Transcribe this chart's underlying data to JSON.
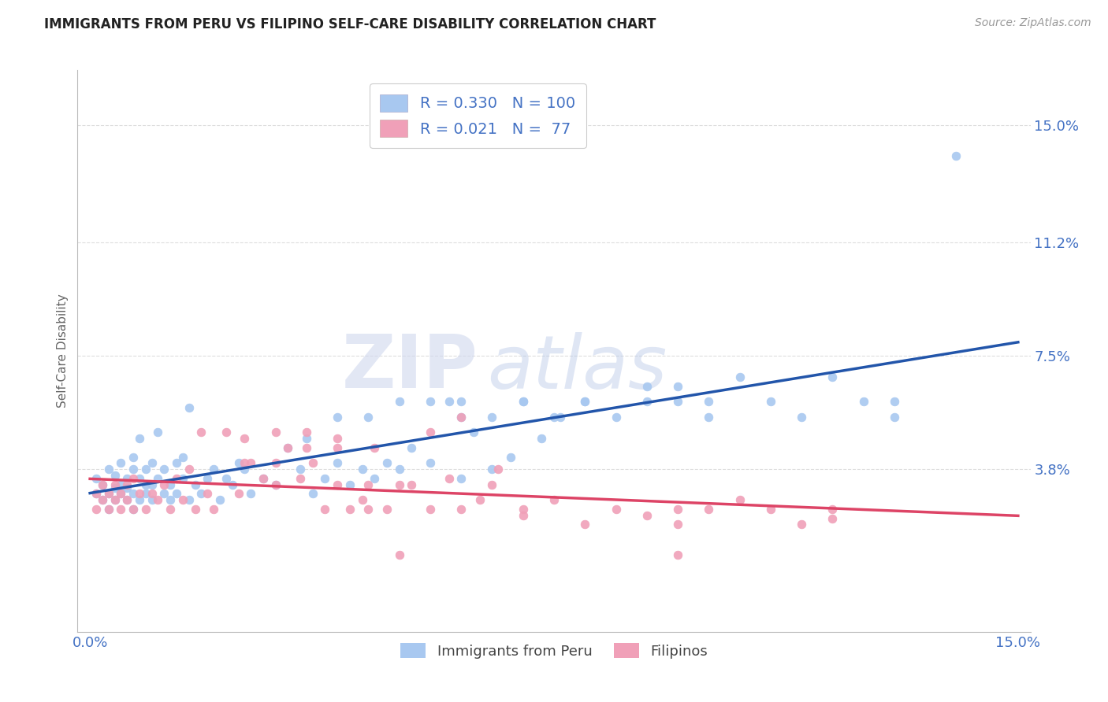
{
  "title": "IMMIGRANTS FROM PERU VS FILIPINO SELF-CARE DISABILITY CORRELATION CHART",
  "source": "Source: ZipAtlas.com",
  "ylabel": "Self-Care Disability",
  "series1_name": "Immigrants from Peru",
  "series2_name": "Filipinos",
  "series1_color": "#a8c8f0",
  "series2_color": "#f0a0b8",
  "series1_line_color": "#2255aa",
  "series2_line_color": "#dd4466",
  "series1_R": 0.33,
  "series1_N": 100,
  "series2_R": 0.021,
  "series2_N": 77,
  "xlim": [
    -0.002,
    0.152
  ],
  "ylim": [
    -0.015,
    0.168
  ],
  "yticks": [
    0.038,
    0.075,
    0.112,
    0.15
  ],
  "ytick_labels": [
    "3.8%",
    "7.5%",
    "11.2%",
    "15.0%"
  ],
  "xticks": [
    0.0,
    0.15
  ],
  "xtick_labels": [
    "0.0%",
    "15.0%"
  ],
  "background_color": "#ffffff",
  "grid_color": "#cccccc",
  "title_color": "#222222",
  "axis_label_color": "#666666",
  "tick_label_color": "#4472c4",
  "series1_x": [
    0.001,
    0.001,
    0.002,
    0.002,
    0.003,
    0.003,
    0.003,
    0.004,
    0.004,
    0.004,
    0.005,
    0.005,
    0.005,
    0.006,
    0.006,
    0.006,
    0.007,
    0.007,
    0.007,
    0.007,
    0.008,
    0.008,
    0.008,
    0.009,
    0.009,
    0.009,
    0.01,
    0.01,
    0.01,
    0.011,
    0.011,
    0.012,
    0.012,
    0.013,
    0.013,
    0.014,
    0.014,
    0.015,
    0.015,
    0.016,
    0.016,
    0.017,
    0.018,
    0.019,
    0.02,
    0.021,
    0.022,
    0.023,
    0.024,
    0.025,
    0.026,
    0.028,
    0.03,
    0.032,
    0.034,
    0.036,
    0.038,
    0.04,
    0.042,
    0.044,
    0.046,
    0.048,
    0.05,
    0.052,
    0.055,
    0.058,
    0.06,
    0.062,
    0.065,
    0.068,
    0.07,
    0.073,
    0.076,
    0.08,
    0.085,
    0.09,
    0.095,
    0.1,
    0.105,
    0.11,
    0.115,
    0.12,
    0.125,
    0.13,
    0.09,
    0.095,
    0.1,
    0.06,
    0.065,
    0.07,
    0.075,
    0.08,
    0.035,
    0.04,
    0.045,
    0.05,
    0.055,
    0.06,
    0.13,
    0.14
  ],
  "series1_y": [
    0.03,
    0.035,
    0.028,
    0.033,
    0.03,
    0.038,
    0.025,
    0.032,
    0.036,
    0.028,
    0.033,
    0.03,
    0.04,
    0.028,
    0.035,
    0.032,
    0.03,
    0.038,
    0.025,
    0.042,
    0.028,
    0.035,
    0.048,
    0.033,
    0.03,
    0.038,
    0.028,
    0.04,
    0.033,
    0.035,
    0.05,
    0.03,
    0.038,
    0.028,
    0.033,
    0.04,
    0.03,
    0.035,
    0.042,
    0.028,
    0.058,
    0.033,
    0.03,
    0.035,
    0.038,
    0.028,
    0.035,
    0.033,
    0.04,
    0.038,
    0.03,
    0.035,
    0.033,
    0.045,
    0.038,
    0.03,
    0.035,
    0.04,
    0.033,
    0.038,
    0.035,
    0.04,
    0.038,
    0.045,
    0.04,
    0.06,
    0.035,
    0.05,
    0.038,
    0.042,
    0.06,
    0.048,
    0.055,
    0.06,
    0.055,
    0.065,
    0.06,
    0.055,
    0.068,
    0.06,
    0.055,
    0.068,
    0.06,
    0.055,
    0.06,
    0.065,
    0.06,
    0.06,
    0.055,
    0.06,
    0.055,
    0.06,
    0.048,
    0.055,
    0.055,
    0.06,
    0.06,
    0.055,
    0.06,
    0.14
  ],
  "series2_x": [
    0.001,
    0.001,
    0.002,
    0.002,
    0.003,
    0.003,
    0.004,
    0.004,
    0.005,
    0.005,
    0.006,
    0.006,
    0.007,
    0.007,
    0.008,
    0.009,
    0.01,
    0.011,
    0.012,
    0.013,
    0.014,
    0.015,
    0.016,
    0.017,
    0.018,
    0.019,
    0.02,
    0.022,
    0.024,
    0.026,
    0.028,
    0.03,
    0.032,
    0.034,
    0.036,
    0.038,
    0.04,
    0.042,
    0.044,
    0.046,
    0.048,
    0.05,
    0.052,
    0.055,
    0.058,
    0.06,
    0.063,
    0.066,
    0.07,
    0.075,
    0.08,
    0.085,
    0.09,
    0.095,
    0.1,
    0.105,
    0.11,
    0.115,
    0.12,
    0.03,
    0.035,
    0.04,
    0.045,
    0.05,
    0.025,
    0.025,
    0.03,
    0.035,
    0.04,
    0.045,
    0.055,
    0.06,
    0.065,
    0.07,
    0.095,
    0.12,
    0.095
  ],
  "series2_y": [
    0.03,
    0.025,
    0.033,
    0.028,
    0.025,
    0.03,
    0.028,
    0.033,
    0.03,
    0.025,
    0.033,
    0.028,
    0.035,
    0.025,
    0.03,
    0.025,
    0.03,
    0.028,
    0.033,
    0.025,
    0.035,
    0.028,
    0.038,
    0.025,
    0.05,
    0.03,
    0.025,
    0.05,
    0.03,
    0.04,
    0.035,
    0.033,
    0.045,
    0.035,
    0.04,
    0.025,
    0.033,
    0.025,
    0.028,
    0.045,
    0.025,
    0.01,
    0.033,
    0.025,
    0.035,
    0.025,
    0.028,
    0.038,
    0.025,
    0.028,
    0.02,
    0.025,
    0.023,
    0.025,
    0.025,
    0.028,
    0.025,
    0.02,
    0.025,
    0.04,
    0.045,
    0.048,
    0.033,
    0.033,
    0.04,
    0.048,
    0.05,
    0.05,
    0.045,
    0.025,
    0.05,
    0.055,
    0.033,
    0.023,
    0.02,
    0.022,
    0.01
  ]
}
